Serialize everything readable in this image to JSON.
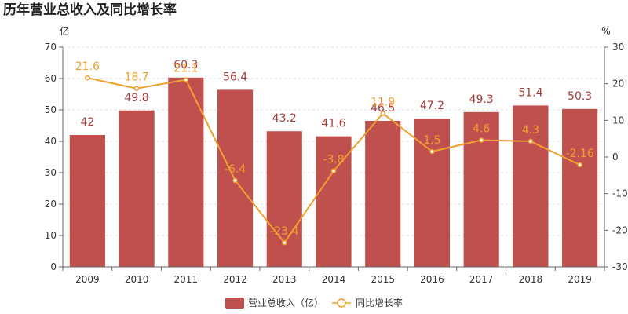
{
  "chart_data": {
    "type": "bar",
    "title": "历年营业总收入及同比增长率",
    "left_axis_unit": "亿",
    "right_axis_unit": "%",
    "categories": [
      "2009",
      "2010",
      "2011",
      "2012",
      "2013",
      "2014",
      "2015",
      "2016",
      "2017",
      "2018",
      "2019"
    ],
    "left_ylim": [
      0,
      70
    ],
    "left_ticks": [
      "0",
      "10",
      "20",
      "30",
      "40",
      "50",
      "60",
      "70"
    ],
    "right_ylim": [
      -30,
      30
    ],
    "right_ticks": [
      "-30",
      "-20",
      "-10",
      "0",
      "10",
      "20",
      "30"
    ],
    "grid": "horizontal dashed",
    "legend_position": "bottom",
    "series": [
      {
        "name": "营业总收入（亿）",
        "type": "bar",
        "axis": "left",
        "color": "#c0504d",
        "values": [
          42,
          49.8,
          60.3,
          56.4,
          43.2,
          41.6,
          46.5,
          47.2,
          49.3,
          51.4,
          50.3
        ],
        "labels": [
          "42",
          "49.8",
          "60.3",
          "56.4",
          "43.2",
          "41.6",
          "46.5",
          "47.2",
          "49.3",
          "51.4",
          "50.3"
        ]
      },
      {
        "name": "同比增长率",
        "type": "line",
        "axis": "right",
        "color": "#f0a030",
        "values": [
          21.6,
          18.7,
          21.1,
          -6.4,
          -23.4,
          -3.8,
          11.9,
          1.5,
          4.6,
          4.3,
          -2.16
        ],
        "labels": [
          "21.6",
          "18.7",
          "21.1",
          "-6.4",
          "-23.4",
          "-3.8",
          "11.9",
          "1.5",
          "4.6",
          "4.3",
          "-2.16"
        ]
      }
    ]
  }
}
